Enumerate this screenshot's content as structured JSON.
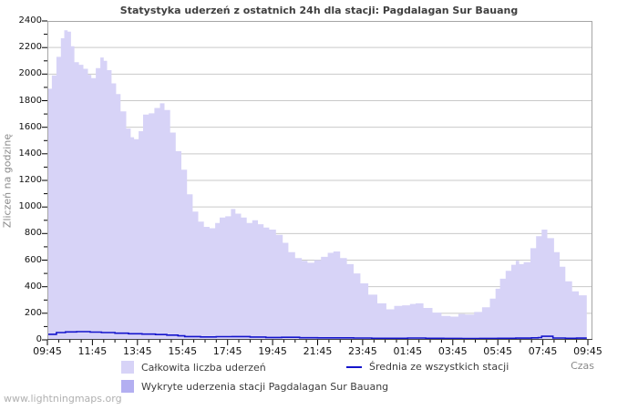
{
  "watermark": "www.lightningmaps.org",
  "chart_data": {
    "type": "area",
    "title": "Statystyka uderzeń z ostatnich 24h dla stacji: Pagdalagan Sur Bauang",
    "xlabel": "Czas",
    "ylabel": "Zliczeń na godzinę",
    "x_hours_span": 24,
    "x_tick_labels": [
      "09:45",
      "11:45",
      "13:45",
      "15:45",
      "17:45",
      "19:45",
      "21:45",
      "23:45",
      "01:45",
      "03:45",
      "05:45",
      "07:45",
      "09:45"
    ],
    "x_minor_tick_every_hours": 0.5,
    "ylim": [
      0,
      2400
    ],
    "y_tick_step": 200,
    "y_minor_tick_step": 100,
    "grid": "horizontal-only",
    "gridline_color": "#c9c9c9",
    "plot_border_color": "#a6a6a6",
    "legend_position": "bottom",
    "series": [
      {
        "name": "Całkowita liczba uderzeń",
        "type": "area",
        "color": "#d7d3f7",
        "points": [
          [
            0,
            1890
          ],
          [
            0.2,
            1990
          ],
          [
            0.4,
            2130
          ],
          [
            0.6,
            2270
          ],
          [
            0.75,
            2330
          ],
          [
            0.9,
            2320
          ],
          [
            1.05,
            2210
          ],
          [
            1.2,
            2090
          ],
          [
            1.4,
            2070
          ],
          [
            1.6,
            2040
          ],
          [
            1.8,
            1995
          ],
          [
            1.95,
            1970
          ],
          [
            2.15,
            2045
          ],
          [
            2.35,
            2125
          ],
          [
            2.5,
            2100
          ],
          [
            2.65,
            2030
          ],
          [
            2.85,
            1930
          ],
          [
            3.05,
            1850
          ],
          [
            3.25,
            1720
          ],
          [
            3.5,
            1590
          ],
          [
            3.7,
            1525
          ],
          [
            3.85,
            1510
          ],
          [
            4.05,
            1570
          ],
          [
            4.25,
            1695
          ],
          [
            4.5,
            1705
          ],
          [
            4.75,
            1745
          ],
          [
            5.0,
            1780
          ],
          [
            5.2,
            1730
          ],
          [
            5.45,
            1560
          ],
          [
            5.7,
            1420
          ],
          [
            5.95,
            1280
          ],
          [
            6.2,
            1095
          ],
          [
            6.45,
            965
          ],
          [
            6.7,
            890
          ],
          [
            6.95,
            850
          ],
          [
            7.2,
            840
          ],
          [
            7.45,
            880
          ],
          [
            7.65,
            920
          ],
          [
            7.9,
            930
          ],
          [
            8.15,
            985
          ],
          [
            8.35,
            950
          ],
          [
            8.6,
            920
          ],
          [
            8.85,
            880
          ],
          [
            9.1,
            900
          ],
          [
            9.35,
            870
          ],
          [
            9.6,
            845
          ],
          [
            9.85,
            830
          ],
          [
            10.15,
            790
          ],
          [
            10.45,
            730
          ],
          [
            10.7,
            660
          ],
          [
            11.0,
            615
          ],
          [
            11.3,
            595
          ],
          [
            11.55,
            580
          ],
          [
            11.85,
            600
          ],
          [
            12.15,
            625
          ],
          [
            12.45,
            655
          ],
          [
            12.7,
            665
          ],
          [
            13.0,
            615
          ],
          [
            13.3,
            570
          ],
          [
            13.6,
            500
          ],
          [
            13.9,
            425
          ],
          [
            14.25,
            340
          ],
          [
            14.65,
            275
          ],
          [
            15.05,
            230
          ],
          [
            15.4,
            255
          ],
          [
            15.75,
            260
          ],
          [
            16.1,
            270
          ],
          [
            16.35,
            275
          ],
          [
            16.7,
            240
          ],
          [
            17.1,
            205
          ],
          [
            17.5,
            180
          ],
          [
            17.9,
            175
          ],
          [
            18.25,
            195
          ],
          [
            18.55,
            190
          ],
          [
            18.95,
            210
          ],
          [
            19.3,
            245
          ],
          [
            19.65,
            310
          ],
          [
            19.9,
            385
          ],
          [
            20.1,
            460
          ],
          [
            20.35,
            520
          ],
          [
            20.6,
            565
          ],
          [
            20.8,
            595
          ],
          [
            20.95,
            570
          ],
          [
            21.15,
            585
          ],
          [
            21.45,
            690
          ],
          [
            21.7,
            780
          ],
          [
            21.95,
            830
          ],
          [
            22.2,
            765
          ],
          [
            22.5,
            660
          ],
          [
            22.75,
            550
          ],
          [
            23.0,
            440
          ],
          [
            23.3,
            365
          ],
          [
            23.6,
            335
          ],
          [
            23.95,
            330
          ]
        ]
      },
      {
        "name": "Wykryte uderzenia stacji Pagdalagan Sur Bauang",
        "type": "area",
        "color": "#b3aff1",
        "points": [
          [
            0,
            0
          ],
          [
            23.95,
            0
          ]
        ]
      },
      {
        "name": "Średnia ze wszystkich stacji",
        "type": "line",
        "color": "#1414cc",
        "points": [
          [
            0,
            42
          ],
          [
            0.4,
            55
          ],
          [
            0.8,
            60
          ],
          [
            1.3,
            62
          ],
          [
            1.9,
            58
          ],
          [
            2.4,
            55
          ],
          [
            3.0,
            50
          ],
          [
            3.6,
            46
          ],
          [
            4.2,
            43
          ],
          [
            4.8,
            40
          ],
          [
            5.3,
            36
          ],
          [
            5.8,
            30
          ],
          [
            6.1,
            25
          ],
          [
            6.8,
            22
          ],
          [
            7.5,
            24
          ],
          [
            8.2,
            25
          ],
          [
            9.0,
            21
          ],
          [
            9.7,
            18
          ],
          [
            10.4,
            19
          ],
          [
            11.2,
            16
          ],
          [
            12.0,
            15
          ],
          [
            12.8,
            15
          ],
          [
            13.6,
            14
          ],
          [
            14.4,
            12
          ],
          [
            15.2,
            12
          ],
          [
            16.0,
            14
          ],
          [
            16.8,
            12
          ],
          [
            17.6,
            11
          ],
          [
            18.4,
            10
          ],
          [
            19.2,
            11
          ],
          [
            20.0,
            12
          ],
          [
            20.8,
            13
          ],
          [
            21.5,
            15
          ],
          [
            21.8,
            17
          ],
          [
            21.95,
            27
          ],
          [
            22.25,
            27
          ],
          [
            22.45,
            14
          ],
          [
            23.0,
            12
          ],
          [
            23.5,
            13
          ],
          [
            23.95,
            13
          ]
        ]
      }
    ]
  },
  "legend": {
    "total_label": "Całkowita liczba uderzeń",
    "station_label": "Wykryte uderzenia stacji Pagdalagan Sur Bauang",
    "average_label": "Średnia ze wszystkich stacji"
  }
}
